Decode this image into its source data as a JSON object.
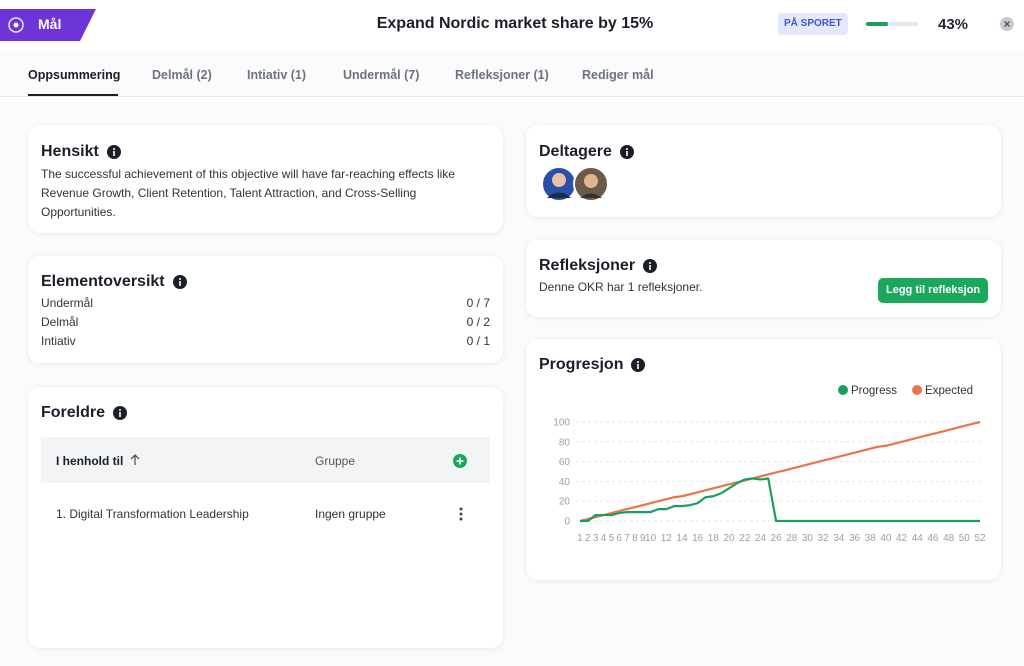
{
  "header": {
    "badge": "Mål",
    "title": "Expand Nordic market share by 15%",
    "status": "PÅ SPORET",
    "progress": {
      "value": 43,
      "label": "43%"
    }
  },
  "tabs": [
    "Oppsummering",
    "Delmål (2)",
    "Intiativ (1)",
    "Undermål (7)",
    "Refleksjoner (1)",
    "Rediger mål"
  ],
  "hensikt": {
    "title": "Hensikt",
    "text": "The successful achievement of this objective will have far-reaching effects like Revenue Growth, Client Retention, Talent Attraction, and Cross-Selling Opportunities."
  },
  "elementoversikt": {
    "title": "Elementoversikt",
    "rows": [
      {
        "label": "Undermål",
        "value": "0 / 7"
      },
      {
        "label": "Delmål",
        "value": "0 / 2"
      },
      {
        "label": "Intiativ",
        "value": "0 / 1"
      }
    ]
  },
  "foreldre": {
    "title": "Foreldre",
    "columns": [
      "I henhold til",
      "Gruppe"
    ],
    "rows": [
      [
        "1. Digital Transformation Leadership",
        "Ingen gruppe"
      ]
    ]
  },
  "deltagere": {
    "title": "Deltagere"
  },
  "refleksjoner": {
    "title": "Refleksjoner",
    "text": "Denne OKR har 1 refleksjoner.",
    "button": "Legg til refleksjon"
  },
  "progresjon": {
    "title": "Progresjon"
  },
  "chart_data": {
    "type": "line",
    "x": [
      1,
      2,
      3,
      4,
      5,
      6,
      7,
      8,
      9,
      10,
      11,
      12,
      13,
      14,
      15,
      16,
      17,
      18,
      19,
      20,
      21,
      22,
      23,
      24,
      25,
      26,
      27,
      28,
      29,
      30,
      31,
      32,
      33,
      34,
      35,
      36,
      37,
      38,
      39,
      40,
      41,
      42,
      43,
      44,
      45,
      46,
      47,
      48,
      49,
      50,
      51,
      52
    ],
    "xlim": [
      1,
      52
    ],
    "xticks": [
      1,
      2,
      3,
      4,
      5,
      6,
      7,
      8,
      9,
      10,
      12,
      14,
      16,
      18,
      20,
      22,
      24,
      26,
      28,
      30,
      32,
      34,
      36,
      38,
      40,
      42,
      44,
      46,
      48,
      50,
      52
    ],
    "ylim": [
      0,
      100
    ],
    "yticks": [
      0,
      20,
      40,
      60,
      80,
      100
    ],
    "grid": true,
    "legend": "top-right",
    "series": [
      {
        "name": "Progress",
        "color": "#1a9e5c",
        "values": [
          0,
          0,
          6,
          6,
          6,
          8,
          9,
          9,
          9,
          9,
          12,
          12,
          15,
          15,
          16,
          18,
          24,
          25,
          28,
          33,
          38,
          42,
          43,
          42,
          43,
          0,
          0,
          0,
          0,
          0,
          0,
          0,
          0,
          0,
          0,
          0,
          0,
          0,
          0,
          0,
          0,
          0,
          0,
          0,
          0,
          0,
          0,
          0,
          0,
          0,
          0,
          0
        ]
      },
      {
        "name": "Expected",
        "color": "#e8744a",
        "values": [
          0,
          2,
          4,
          6,
          8,
          10,
          12,
          14,
          16,
          18,
          20,
          22,
          24,
          25,
          27,
          29,
          31,
          33,
          35,
          37,
          39,
          41,
          43,
          45,
          47,
          49,
          51,
          53,
          55,
          57,
          59,
          61,
          63,
          65,
          67,
          69,
          71,
          73,
          75,
          76,
          78,
          80,
          82,
          84,
          86,
          88,
          90,
          92,
          94,
          96,
          98,
          100
        ]
      }
    ]
  }
}
